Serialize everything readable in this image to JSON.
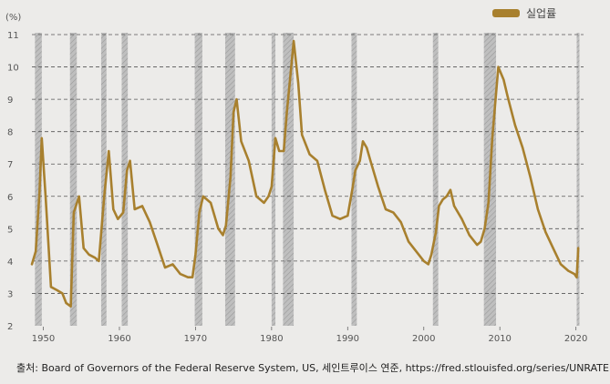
{
  "chart_data": {
    "type": "line",
    "y_unit_label": "(%)",
    "legend_position": "top-right",
    "colors": {
      "series": "#a8802e",
      "recession_band": "#bfbfbf",
      "gridline": "#555555",
      "background": "#ecebe9"
    },
    "ylim": [
      2,
      11
    ],
    "xlim": [
      1948.5,
      2021
    ],
    "yticks": [
      2,
      3,
      4,
      5,
      6,
      7,
      8,
      9,
      10,
      11
    ],
    "xticks": [
      1950,
      1960,
      1970,
      1980,
      1990,
      2000,
      2010,
      2020
    ],
    "grid": "horizontal-dashed",
    "recessions": [
      [
        1948.9,
        1949.8
      ],
      [
        1953.5,
        1954.4
      ],
      [
        1957.6,
        1958.3
      ],
      [
        1960.3,
        1961.1
      ],
      [
        1969.9,
        1970.9
      ],
      [
        1973.9,
        1975.2
      ],
      [
        1980.0,
        1980.5
      ],
      [
        1981.5,
        1982.9
      ],
      [
        1990.5,
        1991.2
      ],
      [
        2001.2,
        2001.9
      ],
      [
        2007.9,
        2009.5
      ],
      [
        2020.1,
        2020.4
      ]
    ],
    "series": [
      {
        "name": "실업률",
        "x": [
          1948.5,
          1949.0,
          1949.5,
          1949.8,
          1950.3,
          1951.0,
          1951.8,
          1952.5,
          1953.0,
          1953.6,
          1954.0,
          1954.7,
          1955.3,
          1956.0,
          1956.8,
          1957.3,
          1958.0,
          1958.6,
          1959.2,
          1959.8,
          1960.5,
          1961.0,
          1961.4,
          1962.0,
          1963.0,
          1964.0,
          1965.0,
          1966.0,
          1967.0,
          1968.0,
          1969.0,
          1969.6,
          1970.0,
          1970.5,
          1971.0,
          1972.0,
          1973.0,
          1973.6,
          1974.0,
          1974.6,
          1975.0,
          1975.4,
          1976.0,
          1977.0,
          1978.0,
          1979.0,
          1979.6,
          1980.0,
          1980.5,
          1981.0,
          1981.6,
          1982.0,
          1982.5,
          1982.9,
          1983.5,
          1984.0,
          1985.0,
          1986.0,
          1987.0,
          1988.0,
          1989.0,
          1990.0,
          1990.6,
          1991.0,
          1991.6,
          1992.0,
          1992.5,
          1993.0,
          1994.0,
          1995.0,
          1996.0,
          1997.0,
          1998.0,
          1999.0,
          2000.0,
          2000.6,
          2001.0,
          2001.6,
          2002.0,
          2002.5,
          2003.0,
          2003.5,
          2004.0,
          2005.0,
          2006.0,
          2007.0,
          2007.5,
          2008.0,
          2008.5,
          2009.0,
          2009.8,
          2010.5,
          2011.0,
          2012.0,
          2013.0,
          2014.0,
          2015.0,
          2016.0,
          2017.0,
          2018.0,
          2019.0,
          2019.8,
          2020.1,
          2020.3
        ],
        "y": [
          3.9,
          4.3,
          6.1,
          7.8,
          6.0,
          3.2,
          3.1,
          3.0,
          2.7,
          2.6,
          5.5,
          6.0,
          4.4,
          4.2,
          4.1,
          4.0,
          6.0,
          7.4,
          5.6,
          5.3,
          5.5,
          6.8,
          7.1,
          5.6,
          5.7,
          5.2,
          4.5,
          3.8,
          3.9,
          3.6,
          3.5,
          3.5,
          4.2,
          5.5,
          6.0,
          5.8,
          5.0,
          4.8,
          5.1,
          6.6,
          8.6,
          9.0,
          7.7,
          7.1,
          6.0,
          5.8,
          6.0,
          6.3,
          7.8,
          7.4,
          7.4,
          8.6,
          9.8,
          10.8,
          9.5,
          7.9,
          7.3,
          7.1,
          6.2,
          5.4,
          5.3,
          5.4,
          6.2,
          6.8,
          7.1,
          7.7,
          7.5,
          7.1,
          6.3,
          5.6,
          5.5,
          5.2,
          4.6,
          4.3,
          4.0,
          3.9,
          4.2,
          4.9,
          5.7,
          5.9,
          6.0,
          6.2,
          5.7,
          5.3,
          4.8,
          4.5,
          4.6,
          5.0,
          5.8,
          7.8,
          10.0,
          9.6,
          9.1,
          8.2,
          7.5,
          6.6,
          5.6,
          4.9,
          4.4,
          3.9,
          3.7,
          3.6,
          3.5,
          4.4
        ]
      }
    ]
  },
  "source": "출처: Board of Governors of the Federal Reserve System, US, 세인트루이스 연준, https://fred.stlouisfed.org/series/UNRATE"
}
